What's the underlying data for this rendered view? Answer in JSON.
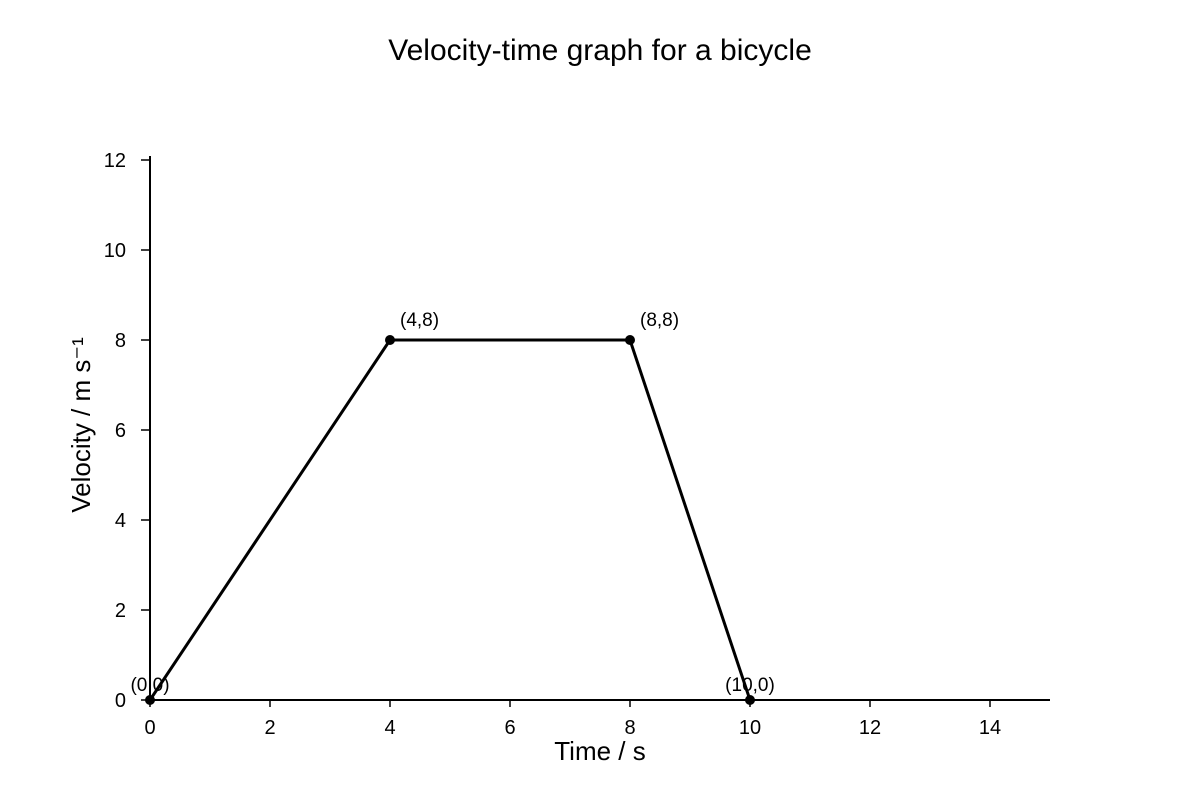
{
  "chart_data": {
    "type": "line",
    "title": "Velocity-time graph for a bicycle",
    "xlabel": "Time / s",
    "ylabel": "Velocity / m s⁻¹",
    "xlim": [
      0,
      15
    ],
    "ylim": [
      0,
      12
    ],
    "x_ticks": [
      0,
      2,
      4,
      6,
      8,
      10,
      12,
      14
    ],
    "y_ticks": [
      0,
      2,
      4,
      6,
      8,
      10,
      12
    ],
    "grid": false,
    "series": [
      {
        "x": [
          0,
          4,
          8,
          10
        ],
        "y": [
          0,
          8,
          8,
          0
        ],
        "color": "#000000",
        "markers": true
      }
    ],
    "annotations": [
      {
        "x": 0,
        "y": 0,
        "text": "(0,0)"
      },
      {
        "x": 4,
        "y": 8,
        "text": "(4,8)"
      },
      {
        "x": 8,
        "y": 8,
        "text": "(8,8)"
      },
      {
        "x": 10,
        "y": 0,
        "text": "(10,0)"
      }
    ]
  }
}
